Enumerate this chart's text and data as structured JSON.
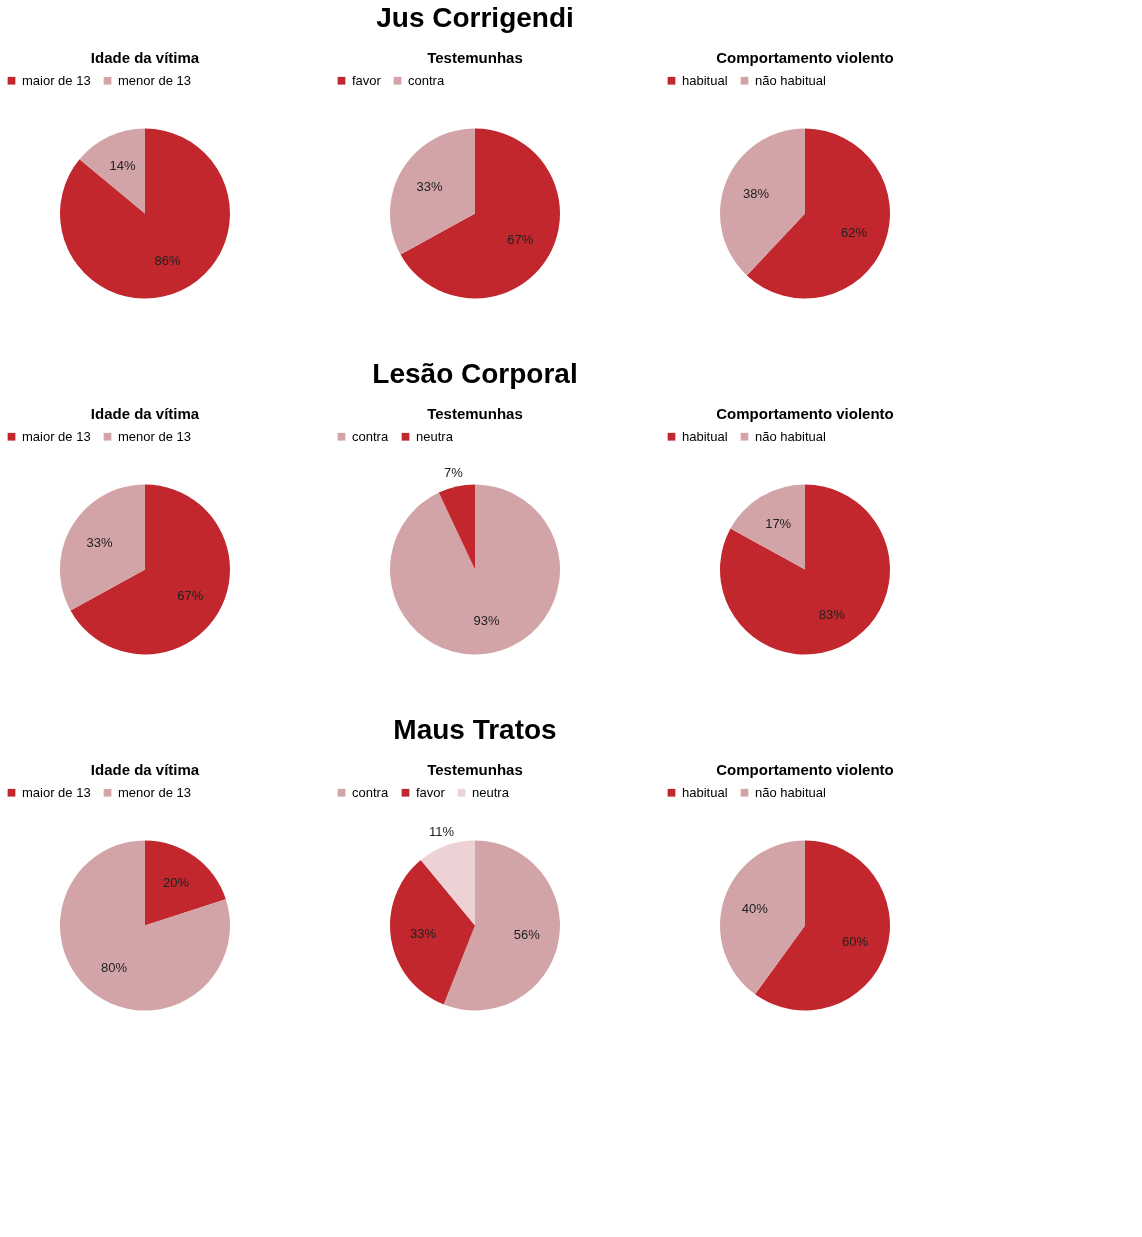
{
  "chart_data": [
    {
      "type": "pie",
      "title": "Idade da vítima",
      "categories": [
        "maior de 13",
        "menor de 13"
      ],
      "values": [
        86,
        14
      ],
      "value_labels": [
        "86%",
        "14%"
      ],
      "colors": [
        "#c1272d",
        "#d3a4a7"
      ],
      "legend": "top"
    },
    {
      "type": "pie",
      "title": "Testemunhas",
      "categories": [
        "favor",
        "contra"
      ],
      "values": [
        67,
        33
      ],
      "value_labels": [
        "67%",
        "33%"
      ],
      "colors": [
        "#c1272d",
        "#d3a4a7"
      ],
      "legend": "top",
      "annotations": [
        "Jus Corrigendi"
      ]
    },
    {
      "type": "pie",
      "title": "Comportamento violento",
      "categories": [
        "habitual",
        "não habitual"
      ],
      "values": [
        62,
        38
      ],
      "value_labels": [
        "62%",
        "38%"
      ],
      "colors": [
        "#c1272d",
        "#d3a4a7"
      ],
      "legend": "top"
    },
    {
      "type": "pie",
      "title": "Idade da vítima",
      "categories": [
        "maior de 13",
        "menor de 13"
      ],
      "values": [
        67,
        33
      ],
      "value_labels": [
        "67%",
        "33%"
      ],
      "colors": [
        "#c1272d",
        "#d3a4a7"
      ],
      "legend": "top"
    },
    {
      "type": "pie",
      "title": "Testemunhas",
      "categories": [
        "contra",
        "neutra"
      ],
      "values": [
        93,
        7
      ],
      "value_labels": [
        "93%",
        "7%"
      ],
      "colors": [
        "#d3a4a7",
        "#c1272d"
      ],
      "legend": "top",
      "annotations": [
        "Lesão Corporal"
      ]
    },
    {
      "type": "pie",
      "title": "Comportamento violento",
      "categories": [
        "habitual",
        "não habitual"
      ],
      "values": [
        83,
        17
      ],
      "value_labels": [
        "83%",
        "17%"
      ],
      "colors": [
        "#c1272d",
        "#d3a4a7"
      ],
      "legend": "top"
    },
    {
      "type": "pie",
      "title": "Idade da vítima",
      "categories": [
        "maior de 13",
        "menor de 13"
      ],
      "values": [
        20,
        80
      ],
      "value_labels": [
        "20%",
        "80%"
      ],
      "colors": [
        "#c1272d",
        "#d3a4a7"
      ],
      "legend": "top"
    },
    {
      "type": "pie",
      "title": "Testemunhas",
      "categories": [
        "contra",
        "favor",
        "neutra"
      ],
      "values": [
        56,
        33,
        11
      ],
      "value_labels": [
        "56%",
        "33%",
        "11%"
      ],
      "colors": [
        "#d3a4a7",
        "#c1272d",
        "#ecd2d4"
      ],
      "legend": "top",
      "annotations": [
        "Maus Tratos"
      ]
    },
    {
      "type": "pie",
      "title": "Comportamento violento",
      "categories": [
        "habitual",
        "não habitual"
      ],
      "values": [
        60,
        40
      ],
      "value_labels": [
        "60%",
        "40%"
      ],
      "colors": [
        "#c1272d",
        "#d3a4a7"
      ],
      "legend": "top"
    }
  ]
}
